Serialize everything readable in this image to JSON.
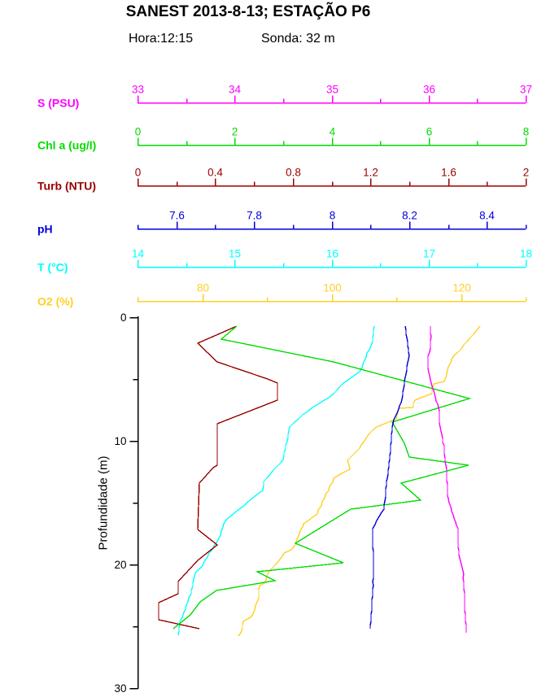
{
  "page": {
    "title": "SANEST 2013-8-13; ESTAÇÃO P6",
    "hora": "Hora:12:15",
    "sonda": "Sonda: 32 m"
  },
  "chart_data": {
    "type": "line",
    "subtype": "oceanographic-depth-profiles",
    "title": "SANEST 2013-8-13; ESTAÇÃO P6",
    "annotations": [
      "Hora:12:15",
      "Sonda: 32 m"
    ],
    "ylabel": "Profundidade (m)",
    "ylim": [
      0,
      30
    ],
    "y_direction": "depth-increases-downward",
    "y_ticks_major": [
      0,
      10,
      20,
      30
    ],
    "y_ticks_minor": [
      5,
      15,
      25
    ],
    "grid": false,
    "legend_position": "stacked-colored-x-axes-on-top",
    "axis_text_color": "#000000",
    "series": [
      {
        "name": "S (PSU)",
        "color": "#FF00FF",
        "axis_min": 33,
        "axis_max": 37,
        "ticks_major": [
          33,
          34,
          35,
          36,
          37
        ],
        "tick_labels": [
          "33",
          "34",
          "35",
          "36",
          "37"
        ],
        "ticks_minor": [
          33.5,
          34.5,
          35.5,
          36.5
        ],
        "points_value_depth": [
          [
            36.02,
            0.7
          ],
          [
            36.02,
            2.5
          ],
          [
            35.99,
            3.5
          ],
          [
            36.0,
            4.5
          ],
          [
            36.03,
            5.3
          ],
          [
            36.06,
            6.2
          ],
          [
            36.1,
            7.3
          ],
          [
            36.12,
            8.9
          ],
          [
            36.16,
            10.7
          ],
          [
            36.18,
            12.0
          ],
          [
            36.19,
            12.9
          ],
          [
            36.2,
            14.7
          ],
          [
            36.25,
            16.0
          ],
          [
            36.3,
            17.1
          ],
          [
            36.31,
            19.2
          ],
          [
            36.34,
            20.0
          ],
          [
            36.36,
            20.8
          ],
          [
            36.37,
            23.5
          ],
          [
            36.38,
            24.3
          ],
          [
            36.39,
            25.5
          ]
        ]
      },
      {
        "name": "Chl a (ug/l)",
        "color": "#00DC00",
        "axis_min": 0,
        "axis_max": 8,
        "ticks_major": [
          0,
          2,
          4,
          6,
          8
        ],
        "tick_labels": [
          "0",
          "2",
          "4",
          "6",
          "8"
        ],
        "ticks_minor": [
          1,
          3,
          5,
          7
        ],
        "points_value_depth": [
          [
            2.05,
            0.7
          ],
          [
            1.73,
            1.8
          ],
          [
            4.04,
            3.6
          ],
          [
            6.85,
            6.6
          ],
          [
            5.25,
            8.5
          ],
          [
            5.5,
            10.2
          ],
          [
            5.6,
            11.3
          ],
          [
            6.83,
            12.0
          ],
          [
            5.44,
            13.4
          ],
          [
            5.84,
            14.8
          ],
          [
            4.4,
            15.5
          ],
          [
            3.26,
            18.3
          ],
          [
            4.24,
            19.9
          ],
          [
            2.47,
            20.6
          ],
          [
            2.83,
            21.3
          ],
          [
            1.63,
            22.1
          ],
          [
            1.29,
            23.0
          ],
          [
            1.09,
            24.1
          ],
          [
            0.73,
            25.2
          ]
        ]
      },
      {
        "name": "Turb (NTU)",
        "color": "#990000",
        "axis_min": 0,
        "axis_max": 2,
        "ticks_major": [
          0,
          0.4,
          0.8,
          1.2,
          1.6,
          2
        ],
        "tick_labels": [
          "0",
          "0.4",
          "0.8",
          "1.2",
          "1.6",
          "2"
        ],
        "ticks_minor": [
          0.2,
          0.6,
          1.0,
          1.4,
          1.8
        ],
        "points_value_depth": [
          [
            0.51,
            0.7
          ],
          [
            0.31,
            2.1
          ],
          [
            0.41,
            3.6
          ],
          [
            0.67,
            5.0
          ],
          [
            0.72,
            5.3
          ],
          [
            0.72,
            6.7
          ],
          [
            0.41,
            8.6
          ],
          [
            0.41,
            12.0
          ],
          [
            0.39,
            12.2
          ],
          [
            0.32,
            13.4
          ],
          [
            0.31,
            17.2
          ],
          [
            0.41,
            18.4
          ],
          [
            0.31,
            19.7
          ],
          [
            0.21,
            21.4
          ],
          [
            0.21,
            22.4
          ],
          [
            0.11,
            23.1
          ],
          [
            0.11,
            24.5
          ],
          [
            0.32,
            25.2
          ]
        ]
      },
      {
        "name": "pH",
        "color": "#0000DC",
        "axis_min": 7.5,
        "axis_max": 8.5,
        "ticks_major": [
          7.6,
          7.8,
          8.0,
          8.2,
          8.4
        ],
        "tick_labels": [
          "7.6",
          "7.8",
          "8",
          "8.2",
          "8.4"
        ],
        "ticks_minor": [
          7.5,
          7.7,
          7.9,
          8.1,
          8.3,
          8.5
        ],
        "points_value_depth": [
          [
            8.19,
            0.7
          ],
          [
            8.195,
            2.0
          ],
          [
            8.2,
            3.1
          ],
          [
            8.19,
            4.9
          ],
          [
            8.18,
            6.9
          ],
          [
            8.16,
            8.3
          ],
          [
            8.155,
            9.5
          ],
          [
            8.15,
            11.5
          ],
          [
            8.14,
            13.9
          ],
          [
            8.135,
            15.5
          ],
          [
            8.105,
            17.1
          ],
          [
            8.108,
            20.8
          ],
          [
            8.1,
            25.2
          ]
        ]
      },
      {
        "name": "T (°C)",
        "color": "#00FFFF",
        "axis_min": 14,
        "axis_max": 18,
        "ticks_major": [
          14,
          15,
          16,
          17,
          18
        ],
        "tick_labels": [
          "14",
          "15",
          "16",
          "17",
          "18"
        ],
        "ticks_minor": [
          14.5,
          15.5,
          16.5,
          17.5
        ],
        "points_value_depth": [
          [
            16.44,
            0.7
          ],
          [
            16.42,
            2.0
          ],
          [
            16.29,
            4.4
          ],
          [
            16.11,
            5.4
          ],
          [
            16.02,
            6.2
          ],
          [
            15.7,
            7.9
          ],
          [
            15.57,
            8.9
          ],
          [
            15.5,
            11.5
          ],
          [
            15.3,
            13.3
          ],
          [
            15.29,
            14.0
          ],
          [
            14.91,
            16.4
          ],
          [
            14.84,
            17.9
          ],
          [
            14.74,
            19.1
          ],
          [
            14.66,
            20.2
          ],
          [
            14.6,
            20.6
          ],
          [
            14.55,
            22.4
          ],
          [
            14.52,
            23.0
          ],
          [
            14.48,
            23.9
          ],
          [
            14.44,
            24.6
          ],
          [
            14.42,
            25.7
          ]
        ]
      },
      {
        "name": "O2 (%)",
        "color": "#FFD024",
        "axis_min": 70,
        "axis_max": 130,
        "ticks_major": [
          80,
          100,
          120
        ],
        "tick_labels": [
          "80",
          "100",
          "120"
        ],
        "ticks_minor": [
          70,
          90,
          110,
          130
        ],
        "points_value_depth": [
          [
            123,
            0.7
          ],
          [
            121,
            2.0
          ],
          [
            119.5,
            2.8
          ],
          [
            118.5,
            3.4
          ],
          [
            117.8,
            4.6
          ],
          [
            117.4,
            5.2
          ],
          [
            115.8,
            5.4
          ],
          [
            115.5,
            6.2
          ],
          [
            112.9,
            6.7
          ],
          [
            112.7,
            7.3
          ],
          [
            110.4,
            7.4
          ],
          [
            110,
            8.2
          ],
          [
            107,
            8.9
          ],
          [
            105.8,
            9.4
          ],
          [
            104.3,
            10.6
          ],
          [
            102.4,
            11.6
          ],
          [
            102.8,
            12.3
          ],
          [
            100.3,
            13.0
          ],
          [
            99.5,
            14.0
          ],
          [
            97.8,
            15.9
          ],
          [
            95.7,
            16.7
          ],
          [
            94.8,
            17.8
          ],
          [
            93.8,
            18.8
          ],
          [
            92.7,
            19.1
          ],
          [
            91.9,
            19.7
          ],
          [
            90.6,
            20.4
          ],
          [
            89.6,
            21.5
          ],
          [
            88.9,
            21.7
          ],
          [
            88.5,
            23.0
          ],
          [
            88.1,
            23.7
          ],
          [
            87.5,
            24.3
          ],
          [
            86.4,
            24.6
          ],
          [
            86.2,
            25.2
          ],
          [
            85.6,
            25.8
          ]
        ]
      }
    ]
  }
}
